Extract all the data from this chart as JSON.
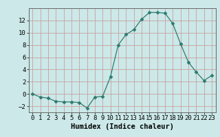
{
  "x": [
    0,
    1,
    2,
    3,
    4,
    5,
    6,
    7,
    8,
    9,
    10,
    11,
    12,
    13,
    14,
    15,
    16,
    17,
    18,
    19,
    20,
    21,
    22,
    23
  ],
  "y": [
    0,
    -0.5,
    -0.7,
    -1.2,
    -1.3,
    -1.3,
    -1.4,
    -2.3,
    -0.5,
    -0.4,
    2.8,
    8.0,
    9.7,
    10.5,
    12.2,
    13.3,
    13.3,
    13.2,
    11.5,
    8.2,
    5.2,
    3.6,
    2.2,
    3.0
  ],
  "line_color": "#2d7a6e",
  "marker": "D",
  "marker_size": 2.5,
  "bg_color": "#cce8e8",
  "grid_color": "#b0d0d0",
  "xlabel": "Humidex (Indice chaleur)",
  "ylim": [
    -3,
    14
  ],
  "xlim": [
    -0.5,
    23.5
  ],
  "yticks": [
    -2,
    0,
    2,
    4,
    6,
    8,
    10,
    12
  ],
  "xticks": [
    0,
    1,
    2,
    3,
    4,
    5,
    6,
    7,
    8,
    9,
    10,
    11,
    12,
    13,
    14,
    15,
    16,
    17,
    18,
    19,
    20,
    21,
    22,
    23
  ],
  "tick_fontsize": 6.5,
  "label_fontsize": 7.5
}
